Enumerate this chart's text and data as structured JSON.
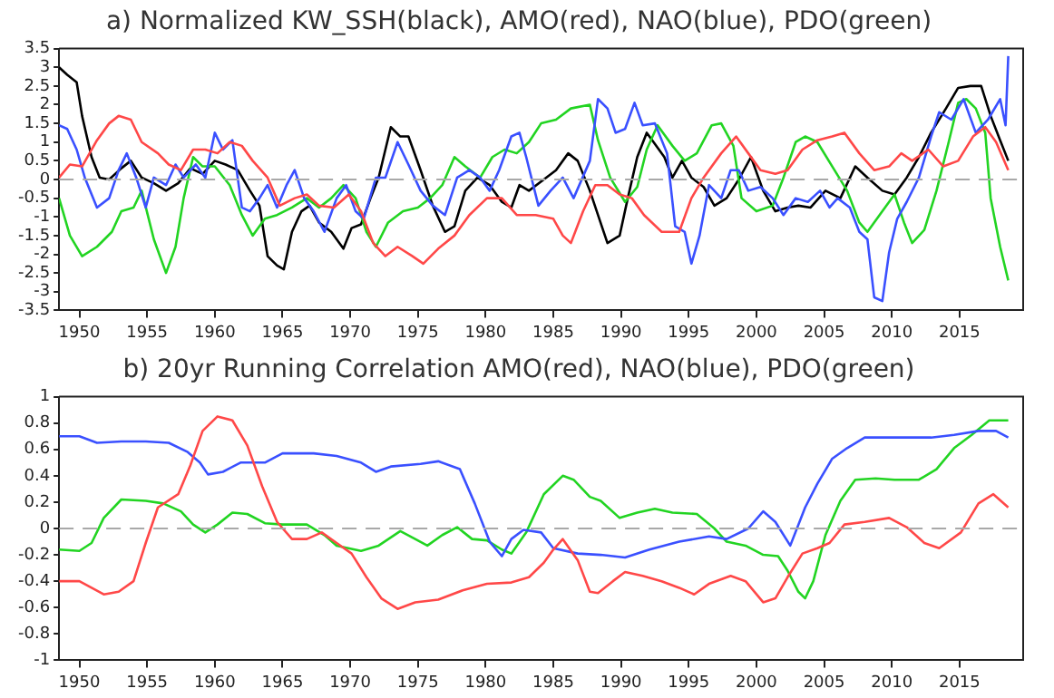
{
  "chart_data": [
    {
      "type": "line",
      "title": "a) Normalized KW_SSH(black), AMO(red), NAO(blue), PDO(green)",
      "xlim": [
        1948.5,
        2019.7
      ],
      "xticks": [
        1950,
        1955,
        1960,
        1965,
        1970,
        1975,
        1980,
        1985,
        1990,
        1995,
        2000,
        2005,
        2010,
        2015
      ],
      "ylim": [
        -3.5,
        3.5
      ],
      "yticks": [
        -3.5,
        -3,
        -2.5,
        -2,
        -1.5,
        -1,
        -0.5,
        0,
        0.5,
        1,
        1.5,
        2,
        2.5,
        3,
        3.5
      ],
      "grid": false,
      "legend": false,
      "ref_lines": [
        {
          "axis": "y",
          "value": 0,
          "color": "#a8a8a8",
          "line_style": "dashed"
        }
      ],
      "series": [
        {
          "color": "#ff4848",
          "x": [
            1948.5,
            1949.3,
            1950.2,
            1951.3,
            1952.2,
            1952.9,
            1953.8,
            1954.6,
            1955.8,
            1956.6,
            1957.5,
            1958.4,
            1959.3,
            1960.2,
            1961.1,
            1962,
            1962.8,
            1963.9,
            1964.8,
            1965.9,
            1966.8,
            1967.7,
            1968.8,
            1969.9,
            1970.8,
            1971.7,
            1972.6,
            1973.5,
            1974.6,
            1975.4,
            1976.5,
            1977.7,
            1978.8,
            1980.1,
            1981.2,
            1982.3,
            1983.7,
            1985,
            1985.7,
            1986.3,
            1987.2,
            1988.1,
            1989,
            1989.9,
            1990.8,
            1991.7,
            1993,
            1994.3,
            1995.2,
            1996.1,
            1997.4,
            1998.5,
            1999.4,
            2000.3,
            2001.4,
            2002.3,
            2003.4,
            2004.5,
            2005.6,
            2006.5,
            2007.6,
            2008.7,
            2009.8,
            2010.7,
            2011.5,
            2012.7,
            2013.8,
            2014.9,
            2016,
            2016.9,
            2017.7,
            2018.6
          ],
          "values": [
            0.05,
            0.4,
            0.35,
            1.05,
            1.5,
            1.7,
            1.6,
            1.0,
            0.7,
            0.4,
            0.25,
            0.8,
            0.8,
            0.7,
            1.0,
            0.9,
            0.5,
            0.05,
            -0.7,
            -0.5,
            -0.4,
            -0.7,
            -0.75,
            -0.4,
            -0.85,
            -1.7,
            -2.05,
            -1.8,
            -2.05,
            -2.25,
            -1.85,
            -1.5,
            -0.95,
            -0.5,
            -0.5,
            -0.95,
            -0.95,
            -1.05,
            -1.5,
            -1.7,
            -0.85,
            -0.15,
            -0.15,
            -0.4,
            -0.5,
            -0.95,
            -1.4,
            -1.4,
            -0.5,
            0.05,
            0.7,
            1.15,
            0.7,
            0.25,
            0.15,
            0.25,
            0.8,
            1.05,
            1.15,
            1.25,
            0.7,
            0.25,
            0.35,
            0.7,
            0.5,
            0.8,
            0.35,
            0.5,
            1.15,
            1.4,
            1.0,
            0.25
          ]
        },
        {
          "color": "#3a50ff",
          "x": [
            1948.5,
            1949.1,
            1949.8,
            1950.4,
            1951.3,
            1952.2,
            1952.9,
            1953.5,
            1954.2,
            1954.9,
            1955.5,
            1956.4,
            1957.1,
            1957.7,
            1958.6,
            1959.3,
            1960,
            1960.6,
            1961.3,
            1962,
            1962.6,
            1963.3,
            1963.9,
            1964.6,
            1965.3,
            1965.9,
            1966.6,
            1967.3,
            1968.1,
            1969,
            1969.7,
            1970.4,
            1971,
            1971.9,
            1972.6,
            1973.5,
            1974.3,
            1975.2,
            1976.1,
            1977,
            1977.9,
            1978.8,
            1979.6,
            1980.3,
            1981,
            1981.9,
            1982.5,
            1983,
            1983.9,
            1984.8,
            1985.7,
            1986.5,
            1987.7,
            1988.3,
            1989,
            1989.6,
            1990.3,
            1991,
            1991.6,
            1992.5,
            1993.4,
            1994,
            1994.7,
            1995.2,
            1995.8,
            1996.5,
            1997.4,
            1998.1,
            1998.7,
            1999.4,
            2000.3,
            2001.2,
            2002,
            2002.9,
            2003.8,
            2004.7,
            2005.4,
            2006,
            2006.9,
            2007.6,
            2008.2,
            2008.7,
            2009.3,
            2009.8,
            2010.4,
            2011.1,
            2012,
            2012.9,
            2013.5,
            2014.4,
            2015.3,
            2016.2,
            2017.1,
            2018,
            2018.4,
            2018.6
          ],
          "values": [
            1.45,
            1.35,
            0.8,
            0.05,
            -0.75,
            -0.5,
            0.25,
            0.7,
            0.05,
            -0.75,
            0.05,
            -0.15,
            0.4,
            0.05,
            0.4,
            0.05,
            1.25,
            0.8,
            1.05,
            -0.75,
            -0.85,
            -0.5,
            -0.15,
            -0.75,
            -0.15,
            0.25,
            -0.5,
            -0.85,
            -1.4,
            -0.5,
            -0.15,
            -0.85,
            -1.05,
            0.05,
            0.05,
            1.0,
            0.4,
            -0.3,
            -0.7,
            -0.95,
            0.05,
            0.25,
            0.05,
            -0.3,
            0.25,
            1.15,
            1.25,
            0.6,
            -0.7,
            -0.3,
            0.05,
            -0.5,
            0.5,
            2.15,
            1.9,
            1.25,
            1.35,
            2.05,
            1.45,
            1.5,
            0.7,
            -1.25,
            -1.4,
            -2.25,
            -1.5,
            -0.15,
            -0.5,
            0.25,
            0.25,
            -0.3,
            -0.2,
            -0.5,
            -0.95,
            -0.5,
            -0.6,
            -0.3,
            -0.75,
            -0.5,
            -0.75,
            -1.4,
            -1.6,
            -3.15,
            -3.25,
            -1.95,
            -1.05,
            -0.6,
            0.05,
            1.15,
            1.8,
            1.6,
            2.15,
            1.25,
            1.6,
            2.15,
            1.45,
            3.3
          ]
        },
        {
          "color": "#22d422",
          "x": [
            1948.5,
            1949.3,
            1950.2,
            1951.3,
            1952.4,
            1953.1,
            1954,
            1954.6,
            1955.5,
            1956.4,
            1957.1,
            1957.7,
            1958.4,
            1959.1,
            1960,
            1961.1,
            1962,
            1962.8,
            1963.7,
            1964.6,
            1965.7,
            1966.8,
            1967.7,
            1968.6,
            1969.5,
            1970.4,
            1971.2,
            1971.9,
            1972.8,
            1973.9,
            1975,
            1975.9,
            1976.8,
            1977.7,
            1978.5,
            1979.6,
            1980.5,
            1981.4,
            1982.3,
            1983.2,
            1984.1,
            1985.2,
            1986.3,
            1987.7,
            1988.3,
            1989.2,
            1990.3,
            1991.2,
            1991.9,
            1992.7,
            1993.8,
            1994.7,
            1995.6,
            1996.7,
            1997.4,
            1998.3,
            1998.9,
            2000,
            2001.2,
            2002,
            2002.9,
            2003.6,
            2004.5,
            2005.6,
            2006.7,
            2007.6,
            2008.2,
            2009.3,
            2010.2,
            2010.9,
            2011.5,
            2012.4,
            2013.3,
            2014.2,
            2014.9,
            2015.5,
            2016.2,
            2016.9,
            2017.3,
            2018,
            2018.6
          ],
          "values": [
            -0.5,
            -1.5,
            -2.05,
            -1.8,
            -1.4,
            -0.85,
            -0.75,
            -0.3,
            -1.6,
            -2.5,
            -1.8,
            -0.5,
            0.6,
            0.35,
            0.35,
            -0.15,
            -0.95,
            -1.5,
            -1.05,
            -0.95,
            -0.75,
            -0.5,
            -0.75,
            -0.5,
            -0.15,
            -0.5,
            -1.4,
            -1.8,
            -1.15,
            -0.85,
            -0.75,
            -0.5,
            -0.15,
            0.6,
            0.35,
            0.05,
            0.6,
            0.8,
            0.7,
            1.0,
            1.5,
            1.6,
            1.9,
            2.0,
            1.05,
            0.05,
            -0.6,
            -0.2,
            0.8,
            1.45,
            0.9,
            0.5,
            0.7,
            1.45,
            1.5,
            0.9,
            -0.5,
            -0.85,
            -0.7,
            0.05,
            1.0,
            1.15,
            1.0,
            0.35,
            -0.3,
            -1.15,
            -1.4,
            -0.85,
            -0.4,
            -1.15,
            -1.7,
            -1.35,
            -0.3,
            1.0,
            2.05,
            2.15,
            1.9,
            1.25,
            -0.5,
            -1.8,
            -2.7
          ]
        },
        {
          "color": "#000000",
          "x": [
            1948.5,
            1949.1,
            1949.8,
            1950.2,
            1950.9,
            1951.5,
            1952.2,
            1953.1,
            1953.8,
            1954.6,
            1955.5,
            1956.4,
            1957.3,
            1958.2,
            1959.1,
            1960,
            1960.8,
            1961.7,
            1962.6,
            1963.3,
            1963.9,
            1964.6,
            1965.1,
            1965.7,
            1966.4,
            1967,
            1967.7,
            1968.6,
            1969.5,
            1970.1,
            1970.8,
            1971.5,
            1972.1,
            1973,
            1973.7,
            1974.3,
            1975.2,
            1976.1,
            1977,
            1977.7,
            1978.5,
            1979.4,
            1980.3,
            1981.2,
            1981.9,
            1982.5,
            1983.2,
            1984.3,
            1985.2,
            1986.1,
            1986.8,
            1987.7,
            1988.3,
            1989,
            1989.9,
            1990.5,
            1991.2,
            1991.9,
            1992.5,
            1993.2,
            1993.8,
            1994.5,
            1995.2,
            1996.1,
            1996.9,
            1997.8,
            1998.7,
            1999.6,
            2000.5,
            2001.4,
            2002.3,
            2003.1,
            2004,
            2005.1,
            2006.2,
            2007.3,
            2008.2,
            2009.3,
            2010.2,
            2011.1,
            2012,
            2012.9,
            2014,
            2014.9,
            2015.8,
            2016.6,
            2017.3,
            2018,
            2018.6
          ],
          "values": [
            3.0,
            2.8,
            2.6,
            1.7,
            0.6,
            0.05,
            0,
            0.3,
            0.5,
            0.05,
            -0.1,
            -0.3,
            -0.1,
            0.3,
            0.15,
            0.5,
            0.4,
            0.25,
            -0.3,
            -0.7,
            -2.05,
            -2.3,
            -2.4,
            -1.4,
            -0.85,
            -0.7,
            -1.15,
            -1.4,
            -1.85,
            -1.3,
            -1.2,
            -0.5,
            0.05,
            1.4,
            1.15,
            1.15,
            0.25,
            -0.7,
            -1.4,
            -1.25,
            -0.3,
            0.05,
            -0.15,
            -0.6,
            -0.75,
            -0.15,
            -0.3,
            0,
            0.25,
            0.7,
            0.5,
            -0.3,
            -0.95,
            -1.7,
            -1.5,
            -0.5,
            0.6,
            1.25,
            0.95,
            0.6,
            0.05,
            0.5,
            0.05,
            -0.2,
            -0.7,
            -0.5,
            0,
            0.6,
            -0.3,
            -0.85,
            -0.75,
            -0.7,
            -0.75,
            -0.3,
            -0.5,
            0.35,
            0.05,
            -0.3,
            -0.4,
            0.05,
            0.6,
            1.25,
            1.9,
            2.45,
            2.5,
            2.5,
            1.7,
            1.05,
            0.5
          ]
        }
      ]
    },
    {
      "type": "line",
      "title": "b) 20yr Running Correlation AMO(red), NAO(blue), PDO(green)",
      "xlim": [
        1948.5,
        2019.7
      ],
      "xticks": [
        1950,
        1955,
        1960,
        1965,
        1970,
        1975,
        1980,
        1985,
        1990,
        1995,
        2000,
        2005,
        2010,
        2015
      ],
      "ylim": [
        -1,
        1
      ],
      "yticks": [
        -1,
        -0.8,
        -0.6,
        -0.4,
        -0.2,
        0,
        0.2,
        0.4,
        0.6,
        0.8,
        1
      ],
      "grid": false,
      "legend": false,
      "ref_lines": [
        {
          "axis": "y",
          "value": 0,
          "color": "#a8a8a8",
          "line_style": "dashed"
        }
      ],
      "series": [
        {
          "color": "#ff4848",
          "x": [
            1948.5,
            1950,
            1950.9,
            1951.8,
            1952.9,
            1954,
            1954.9,
            1955.8,
            1957.3,
            1958.2,
            1959.1,
            1960.2,
            1961.3,
            1962.4,
            1963.5,
            1964.6,
            1965.7,
            1966.8,
            1967.9,
            1969,
            1970.1,
            1971.2,
            1972.3,
            1973.5,
            1974.8,
            1976.5,
            1978.3,
            1980.1,
            1981.9,
            1983.2,
            1984.3,
            1985,
            1985.7,
            1986.8,
            1987.7,
            1988.3,
            1989.4,
            1990.3,
            1991.6,
            1993,
            1994.3,
            1995.4,
            1996.5,
            1998.1,
            1999.2,
            2000.5,
            2001.4,
            2002.3,
            2003.4,
            2004.5,
            2005.4,
            2006.5,
            2008,
            2009.8,
            2011.1,
            2012.4,
            2013.5,
            2015.1,
            2016.4,
            2017.5,
            2018.6
          ],
          "values": [
            -0.4,
            -0.4,
            -0.45,
            -0.5,
            -0.48,
            -0.4,
            -0.11,
            0.16,
            0.26,
            0.48,
            0.74,
            0.85,
            0.82,
            0.63,
            0.32,
            0.05,
            -0.08,
            -0.08,
            -0.03,
            -0.11,
            -0.19,
            -0.37,
            -0.53,
            -0.61,
            -0.56,
            -0.54,
            -0.47,
            -0.42,
            -0.41,
            -0.37,
            -0.26,
            -0.16,
            -0.08,
            -0.24,
            -0.48,
            -0.49,
            -0.4,
            -0.33,
            -0.36,
            -0.4,
            -0.45,
            -0.5,
            -0.42,
            -0.36,
            -0.4,
            -0.56,
            -0.53,
            -0.37,
            -0.19,
            -0.15,
            -0.11,
            0.03,
            0.05,
            0.08,
            0.01,
            -0.11,
            -0.15,
            -0.03,
            0.19,
            0.26,
            0.16
          ]
        },
        {
          "color": "#3a50ff",
          "x": [
            1948.5,
            1950,
            1951.3,
            1953.1,
            1954.9,
            1956.6,
            1958,
            1958.9,
            1959.5,
            1960.6,
            1961.9,
            1963.7,
            1965,
            1967.3,
            1969,
            1970.8,
            1971.9,
            1973,
            1975.2,
            1976.5,
            1978.1,
            1979.2,
            1980.3,
            1981.2,
            1981.9,
            1982.8,
            1984.1,
            1985,
            1986.8,
            1988.5,
            1990.3,
            1992.1,
            1994.3,
            1996.5,
            1997.8,
            1999.4,
            2000.5,
            2001.4,
            2002.5,
            2003.6,
            2004.5,
            2005.6,
            2006.7,
            2008,
            2010.2,
            2012.9,
            2014.6,
            2016.4,
            2017.7,
            2018.6
          ],
          "values": [
            0.7,
            0.7,
            0.65,
            0.66,
            0.66,
            0.65,
            0.58,
            0.5,
            0.41,
            0.43,
            0.5,
            0.5,
            0.57,
            0.57,
            0.55,
            0.5,
            0.43,
            0.47,
            0.49,
            0.51,
            0.45,
            0.19,
            -0.1,
            -0.21,
            -0.08,
            -0.01,
            -0.03,
            -0.15,
            -0.19,
            -0.2,
            -0.22,
            -0.16,
            -0.1,
            -0.06,
            -0.08,
            0,
            0.13,
            0.05,
            -0.13,
            0.16,
            0.34,
            0.53,
            0.61,
            0.69,
            0.69,
            0.69,
            0.71,
            0.74,
            0.74,
            0.69
          ]
        },
        {
          "color": "#22d422",
          "x": [
            1948.5,
            1950,
            1950.9,
            1951.8,
            1953.1,
            1954.9,
            1956.2,
            1957.5,
            1958.4,
            1959.3,
            1960.2,
            1961.3,
            1962.4,
            1963.7,
            1965,
            1966.8,
            1968.1,
            1969,
            1970.8,
            1972.1,
            1973.7,
            1974.8,
            1975.7,
            1976.8,
            1977.9,
            1979,
            1980.1,
            1981.2,
            1981.9,
            1983,
            1984.3,
            1985.7,
            1986.5,
            1987.7,
            1988.5,
            1989.9,
            1991.2,
            1992.5,
            1993.8,
            1995.6,
            1996.9,
            1997.8,
            1999.2,
            2000.5,
            2001.6,
            2002.3,
            2003.1,
            2003.6,
            2004.2,
            2005.1,
            2006.2,
            2007.3,
            2008.8,
            2010.2,
            2012,
            2013.3,
            2014.6,
            2015.9,
            2017.2,
            2018.6
          ],
          "values": [
            -0.16,
            -0.17,
            -0.11,
            0.08,
            0.22,
            0.21,
            0.19,
            0.13,
            0.03,
            -0.03,
            0.03,
            0.12,
            0.11,
            0.04,
            0.03,
            0.03,
            -0.05,
            -0.13,
            -0.17,
            -0.13,
            -0.02,
            -0.08,
            -0.13,
            -0.05,
            0.01,
            -0.08,
            -0.09,
            -0.16,
            -0.19,
            -0.03,
            0.26,
            0.4,
            0.37,
            0.24,
            0.21,
            0.08,
            0.12,
            0.15,
            0.12,
            0.11,
            0,
            -0.1,
            -0.13,
            -0.2,
            -0.21,
            -0.32,
            -0.48,
            -0.53,
            -0.4,
            -0.05,
            0.21,
            0.37,
            0.38,
            0.37,
            0.37,
            0.45,
            0.61,
            0.71,
            0.82,
            0.82
          ]
        }
      ]
    }
  ]
}
